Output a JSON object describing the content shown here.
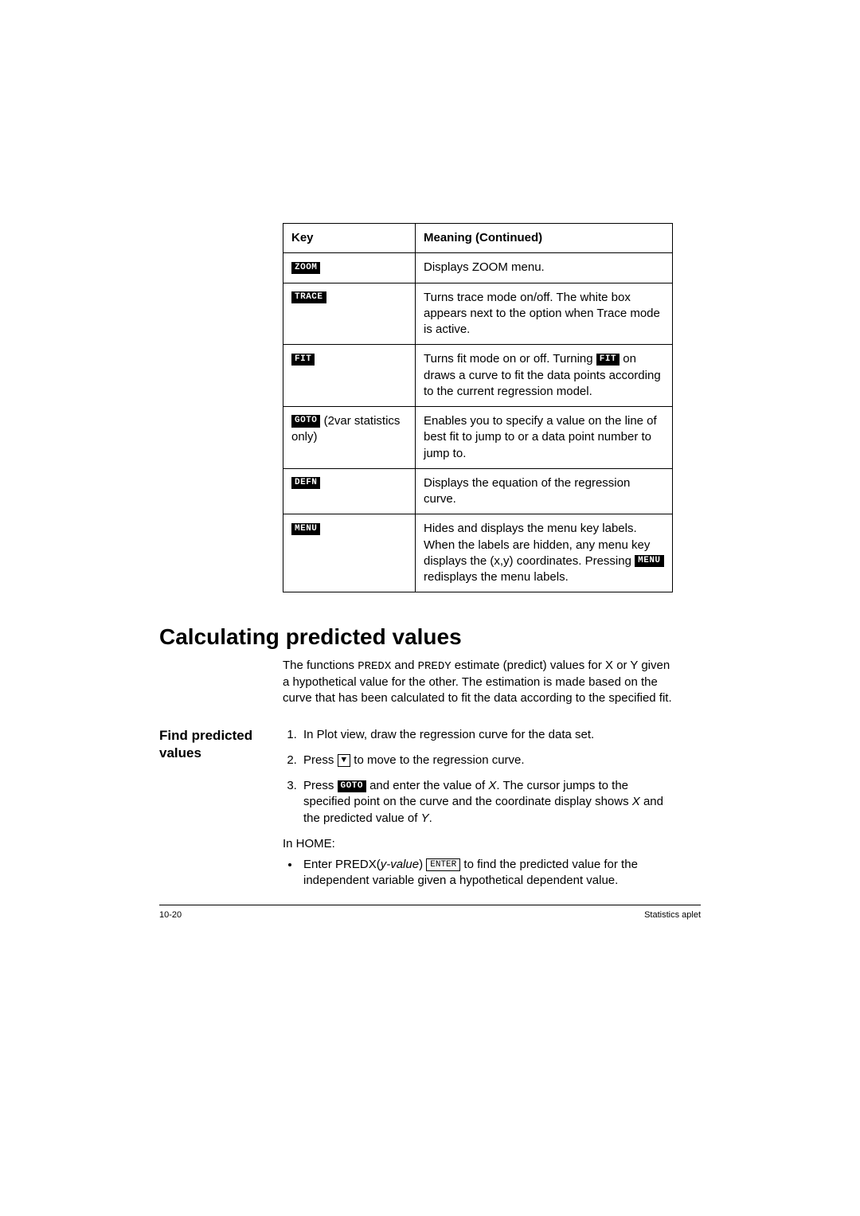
{
  "colors": {
    "text": "#000000",
    "background": "#ffffff",
    "border": "#000000",
    "chip_bg": "#000000",
    "chip_fg": "#ffffff"
  },
  "table": {
    "head_key": "Key",
    "head_meaning": "Meaning  (Continued)",
    "rows": [
      {
        "key_chip": "ZOOM",
        "key_extra": "",
        "meaning_pre": "Displays ZOOM menu.",
        "meaning_chip": "",
        "meaning_post": ""
      },
      {
        "key_chip": "TRACE",
        "key_extra": "",
        "meaning_pre": "Turns trace mode on/off. The white box appears next to the option when Trace mode is active.",
        "meaning_chip": "",
        "meaning_post": ""
      },
      {
        "key_chip": "FIT",
        "key_extra": "",
        "meaning_pre": "Turns fit mode on or off. Turning ",
        "meaning_chip": "FIT",
        "meaning_post": " on draws a curve to fit the data points according to the current regression model."
      },
      {
        "key_chip": "GOTO",
        "key_extra": " (2var statistics only)",
        "meaning_pre": "Enables you to specify a value on the line of best fit to jump to or a data point number to jump to.",
        "meaning_chip": "",
        "meaning_post": ""
      },
      {
        "key_chip": "DEFN",
        "key_extra": "",
        "meaning_pre": "Displays the equation of the regression curve.",
        "meaning_chip": "",
        "meaning_post": ""
      },
      {
        "key_chip": "MENU",
        "key_extra": "",
        "meaning_pre": "Hides and displays the menu key labels. When the labels are hidden, any menu key displays the (x,y) coordinates. Pressing ",
        "meaning_chip": "MENU",
        "meaning_post": " redisplays the menu labels."
      }
    ]
  },
  "section_title": "Calculating predicted values",
  "intro": {
    "pre": "The functions ",
    "fn1": "PREDX",
    "mid1": " and ",
    "fn2": "PREDY",
    "post": " estimate (predict) values for X or Y given a hypothetical value for the other. The estimation is made based on the curve that has been calculated to fit the data according to the specified fit."
  },
  "side_label_line1": "Find predicted",
  "side_label_line2": "values",
  "steps": {
    "s1": "In Plot view, draw the regression curve for the data set.",
    "s2_pre": "Press ",
    "s2_key": "▼",
    "s2_post": " to move to the regression curve.",
    "s3_pre": "Press ",
    "s3_chip": "GOTO",
    "s3_mid": " and enter the value of ",
    "s3_x": "X",
    "s3_post1": ". The cursor jumps to the specified point on the curve and the coordinate display shows ",
    "s3_x2": "X",
    "s3_post2": " and the predicted value of ",
    "s3_y": "Y",
    "s3_dot": "."
  },
  "home_label": "In HOME:",
  "bullet": {
    "pre": "Enter ",
    "fn": "PREDX",
    "open": "(",
    "arg": "y-value",
    "close": ") ",
    "key": "ENTER",
    "post": " to find the predicted value for the independent variable given a hypothetical dependent value."
  },
  "footer_left": "10-20",
  "footer_right": "Statistics aplet"
}
